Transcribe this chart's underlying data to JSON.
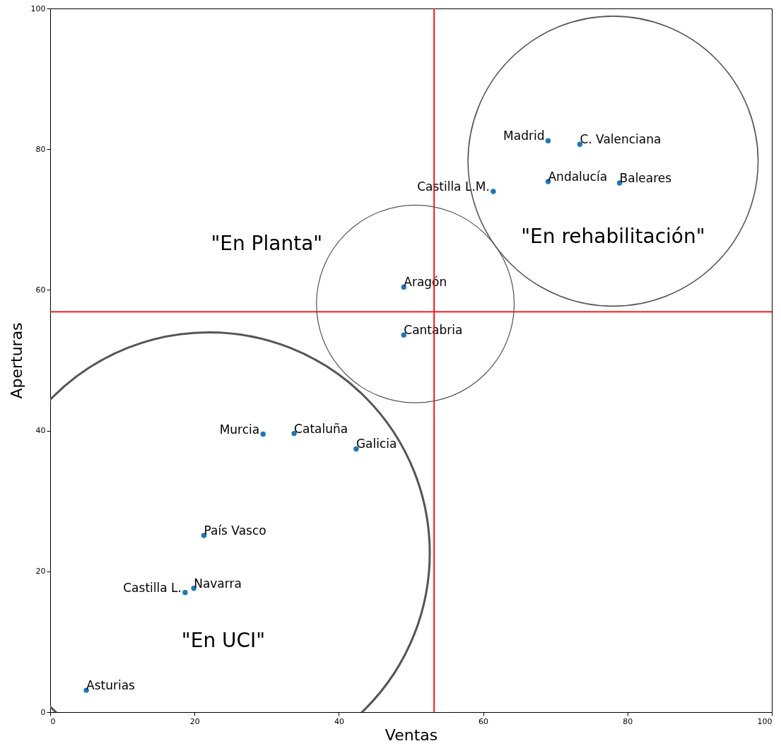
{
  "chart_data": {
    "type": "scatter",
    "xlabel": "Ventas",
    "ylabel": "Aperturas",
    "xlim": [
      0,
      100
    ],
    "ylim": [
      0,
      100
    ],
    "xticks": [
      0,
      20,
      40,
      60,
      80,
      100
    ],
    "yticks": [
      0,
      20,
      40,
      60,
      80,
      100
    ],
    "grid": false,
    "marker": "circle",
    "series": [
      {
        "name": "Madrid",
        "color": "#1f77b4",
        "x": [
          69.0
        ],
        "values": [
          81.2
        ]
      },
      {
        "name": "C. Valenciana",
        "color": "#1f77b4",
        "x": [
          73.4
        ],
        "values": [
          80.7
        ]
      },
      {
        "name": "Andalucía",
        "color": "#1f77b4",
        "x": [
          69.0
        ],
        "values": [
          75.4
        ]
      },
      {
        "name": "Baleares",
        "color": "#1f77b4",
        "x": [
          78.9
        ],
        "values": [
          75.2
        ]
      },
      {
        "name": "Castilla L.M.",
        "color": "#1f77b4",
        "x": [
          61.4
        ],
        "values": [
          74.0
        ]
      },
      {
        "name": "Aragón",
        "color": "#1f77b4",
        "x": [
          49.0
        ],
        "values": [
          60.4
        ]
      },
      {
        "name": "Cantabria",
        "color": "#1f77b4",
        "x": [
          49.0
        ],
        "values": [
          53.6
        ]
      },
      {
        "name": "Murcia",
        "color": "#1f77b4",
        "x": [
          29.5
        ],
        "values": [
          39.5
        ]
      },
      {
        "name": "Cataluña",
        "color": "#1f77b4",
        "x": [
          33.8
        ],
        "values": [
          39.6
        ]
      },
      {
        "name": "Galicia",
        "color": "#1f77b4",
        "x": [
          42.4
        ],
        "values": [
          37.4
        ]
      },
      {
        "name": "País Vasco",
        "color": "#1f77b4",
        "x": [
          21.3
        ],
        "values": [
          25.1
        ]
      },
      {
        "name": "Navarra",
        "color": "#1f77b4",
        "x": [
          19.9
        ],
        "values": [
          17.6
        ]
      },
      {
        "name": "Castilla L.",
        "color": "#1f77b4",
        "x": [
          18.7
        ],
        "values": [
          17.0
        ]
      },
      {
        "name": "Asturias",
        "color": "#1f77b4",
        "x": [
          5.0
        ],
        "values": [
          3.1
        ]
      }
    ],
    "ref_lines": [
      {
        "axis": "x",
        "value": 53.2,
        "color": "#ff0000"
      },
      {
        "axis": "y",
        "value": 56.9,
        "color": "#ff0000"
      }
    ],
    "annotations": [
      "\"En Planta\"",
      "\"En rehabilitación\"",
      "\"En UCI\""
    ]
  }
}
